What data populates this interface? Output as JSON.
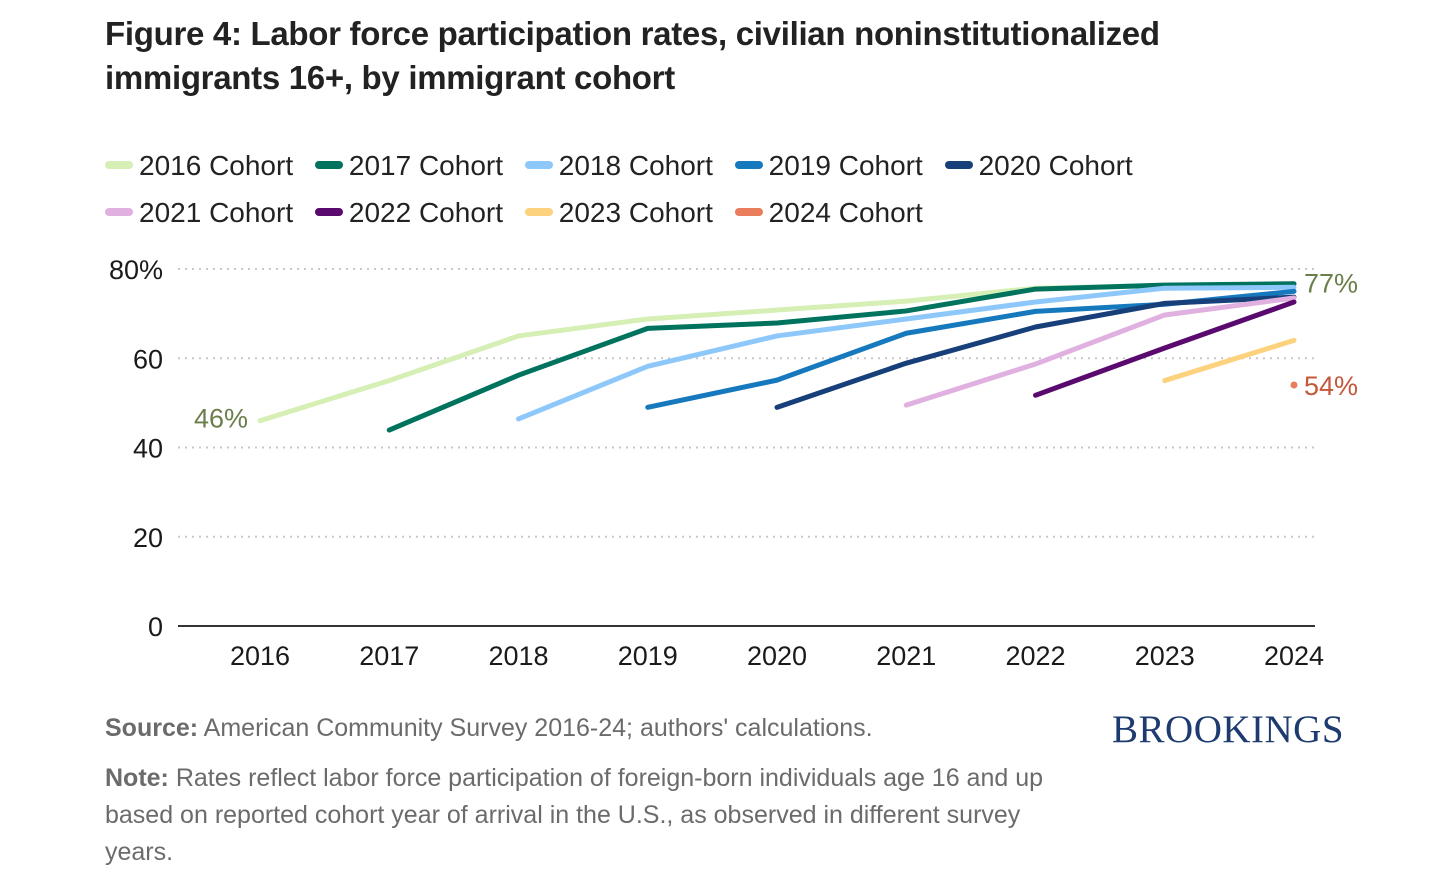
{
  "title": "Figure 4: Labor force participation rates, civilian noninstitutionalized immigrants 16+, by immigrant cohort",
  "source_label": "Source:",
  "source_text": " American Community Survey 2016-24; authors' calculations.",
  "note_label": "Note:",
  "note_text": " Rates reflect labor force participation of foreign-born individuals age 16 and up based on reported cohort year of arrival in the U.S., as observed in different survey years.",
  "logo": "BROOKINGS",
  "chart_data": {
    "type": "line",
    "title": "Figure 4: Labor force participation rates, civilian noninstitutionalized immigrants 16+, by immigrant cohort",
    "xlabel": "",
    "ylabel": "",
    "x": [
      "2016",
      "2017",
      "2018",
      "2019",
      "2020",
      "2021",
      "2022",
      "2023",
      "2024"
    ],
    "ylim": [
      0,
      80
    ],
    "yticks": [
      0,
      20,
      40,
      60,
      80
    ],
    "ytick_labels": [
      "0",
      "20",
      "40",
      "60",
      "80%"
    ],
    "grid": true,
    "legend_position": "top",
    "series": [
      {
        "name": "2016 Cohort",
        "color": "#d5efb5",
        "values": [
          46,
          55,
          65,
          68.8,
          70.8,
          72.8,
          75.7,
          76.3,
          76.6
        ]
      },
      {
        "name": "2017 Cohort",
        "color": "#00735f",
        "values": [
          null,
          43.9,
          56.2,
          66.7,
          67.9,
          70.6,
          75.5,
          76.4,
          76.7
        ]
      },
      {
        "name": "2018 Cohort",
        "color": "#8ec8fb",
        "values": [
          null,
          null,
          46.4,
          58.2,
          65,
          68.8,
          72.6,
          75.7,
          75.9
        ]
      },
      {
        "name": "2019 Cohort",
        "color": "#1679be",
        "values": [
          null,
          null,
          null,
          49,
          55.1,
          65.6,
          70.5,
          72.1,
          75
        ]
      },
      {
        "name": "2020 Cohort",
        "color": "#173f7a",
        "values": [
          null,
          null,
          null,
          null,
          49,
          58.9,
          67,
          72.3,
          73.7
        ]
      },
      {
        "name": "2021 Cohort",
        "color": "#e0b1e0",
        "values": [
          null,
          null,
          null,
          null,
          null,
          49.5,
          58.7,
          69.7,
          73.5
        ]
      },
      {
        "name": "2022 Cohort",
        "color": "#5a0a6e",
        "values": [
          null,
          null,
          null,
          null,
          null,
          null,
          51.7,
          62.3,
          72.6
        ]
      },
      {
        "name": "2023 Cohort",
        "color": "#fdd27e",
        "values": [
          null,
          null,
          null,
          null,
          null,
          null,
          null,
          55,
          64
        ]
      },
      {
        "name": "2024 Cohort",
        "color": "#e97d5c",
        "values": [
          null,
          null,
          null,
          null,
          null,
          null,
          null,
          null,
          54
        ]
      }
    ],
    "annotations": [
      {
        "text": "46%",
        "series": "2016 Cohort",
        "x": "2016",
        "value": 46,
        "color": "#6a7f4a"
      },
      {
        "text": "77%",
        "series": "2016 Cohort",
        "x": "2024",
        "value": 77,
        "color": "#6a7f4a"
      },
      {
        "text": "54%",
        "series": "2024 Cohort",
        "x": "2024",
        "value": 54,
        "color": "#c4583a"
      }
    ]
  }
}
